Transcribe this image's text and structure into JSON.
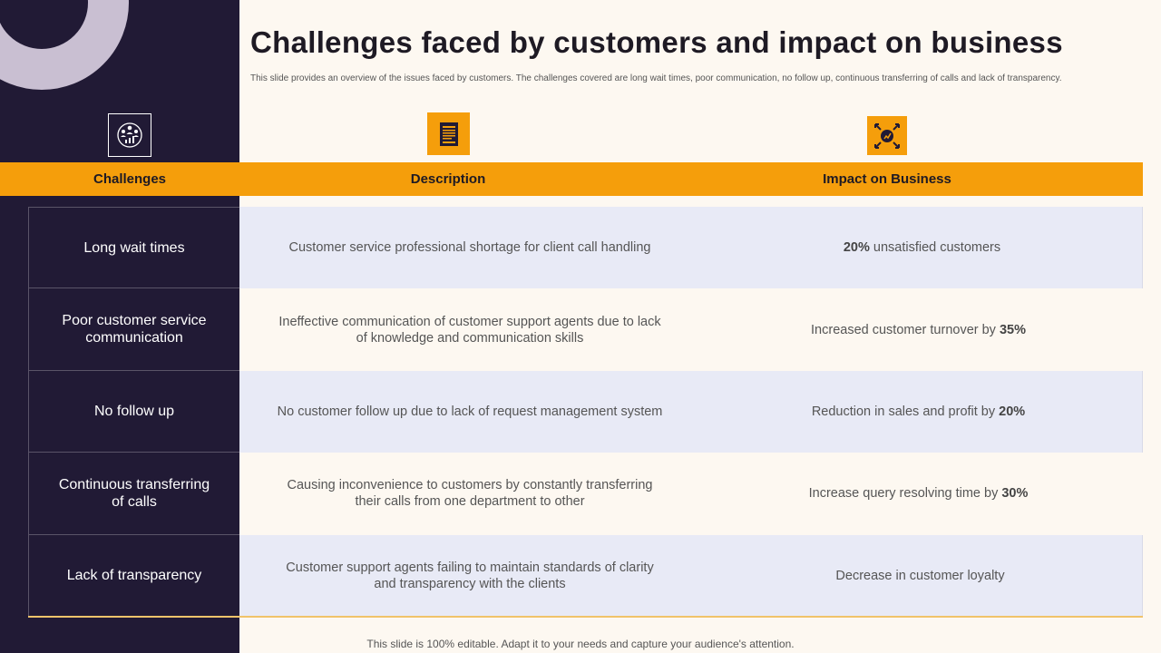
{
  "slide": {
    "title": "Challenges faced by customers and impact on business",
    "subtitle": "This slide provides an overview of the issues faced by customers. The challenges covered are long wait times, poor communication, no follow up, continuous transferring of calls and lack of transparency.",
    "footer": "This slide is 100% editable. Adapt it to your needs and capture your audience's attention."
  },
  "icons": {
    "challenges": "team-growth-icon",
    "description": "document-icon",
    "impact": "impact-arrows-icon"
  },
  "colors": {
    "sidebar": "#211a35",
    "accent": "#f59e0b",
    "row_shade": "#e8eaf6",
    "background": "#fdf8f1"
  },
  "table": {
    "headers": {
      "challenges": "Challenges",
      "description": "Description",
      "impact": "Impact on Business"
    },
    "rows": [
      {
        "challenge": "Long wait times",
        "description": "Customer service professional shortage for client call handling",
        "impact_pre": "",
        "impact_bold": "20%",
        "impact_post": "unsatisfied customers"
      },
      {
        "challenge": "Poor customer service communication",
        "description": "Ineffective communication of customer support agents due to lack of knowledge and communication skills",
        "impact_pre": "Increased customer turnover by",
        "impact_bold": "35%",
        "impact_post": ""
      },
      {
        "challenge": "No follow up",
        "description": "No customer follow up due to lack of request management system",
        "impact_pre": "Reduction in sales and profit by",
        "impact_bold": "20%",
        "impact_post": ""
      },
      {
        "challenge": "Continuous transferring of calls",
        "description": "Causing inconvenience to customers by constantly transferring their calls from one department to other",
        "impact_pre": "Increase query resolving time by",
        "impact_bold": "30%",
        "impact_post": ""
      },
      {
        "challenge": "Lack of transparency",
        "description": "Customer support agents failing to maintain standards of clarity and transparency with the clients",
        "impact_pre": "Decrease in customer loyalty",
        "impact_bold": "",
        "impact_post": ""
      }
    ]
  }
}
